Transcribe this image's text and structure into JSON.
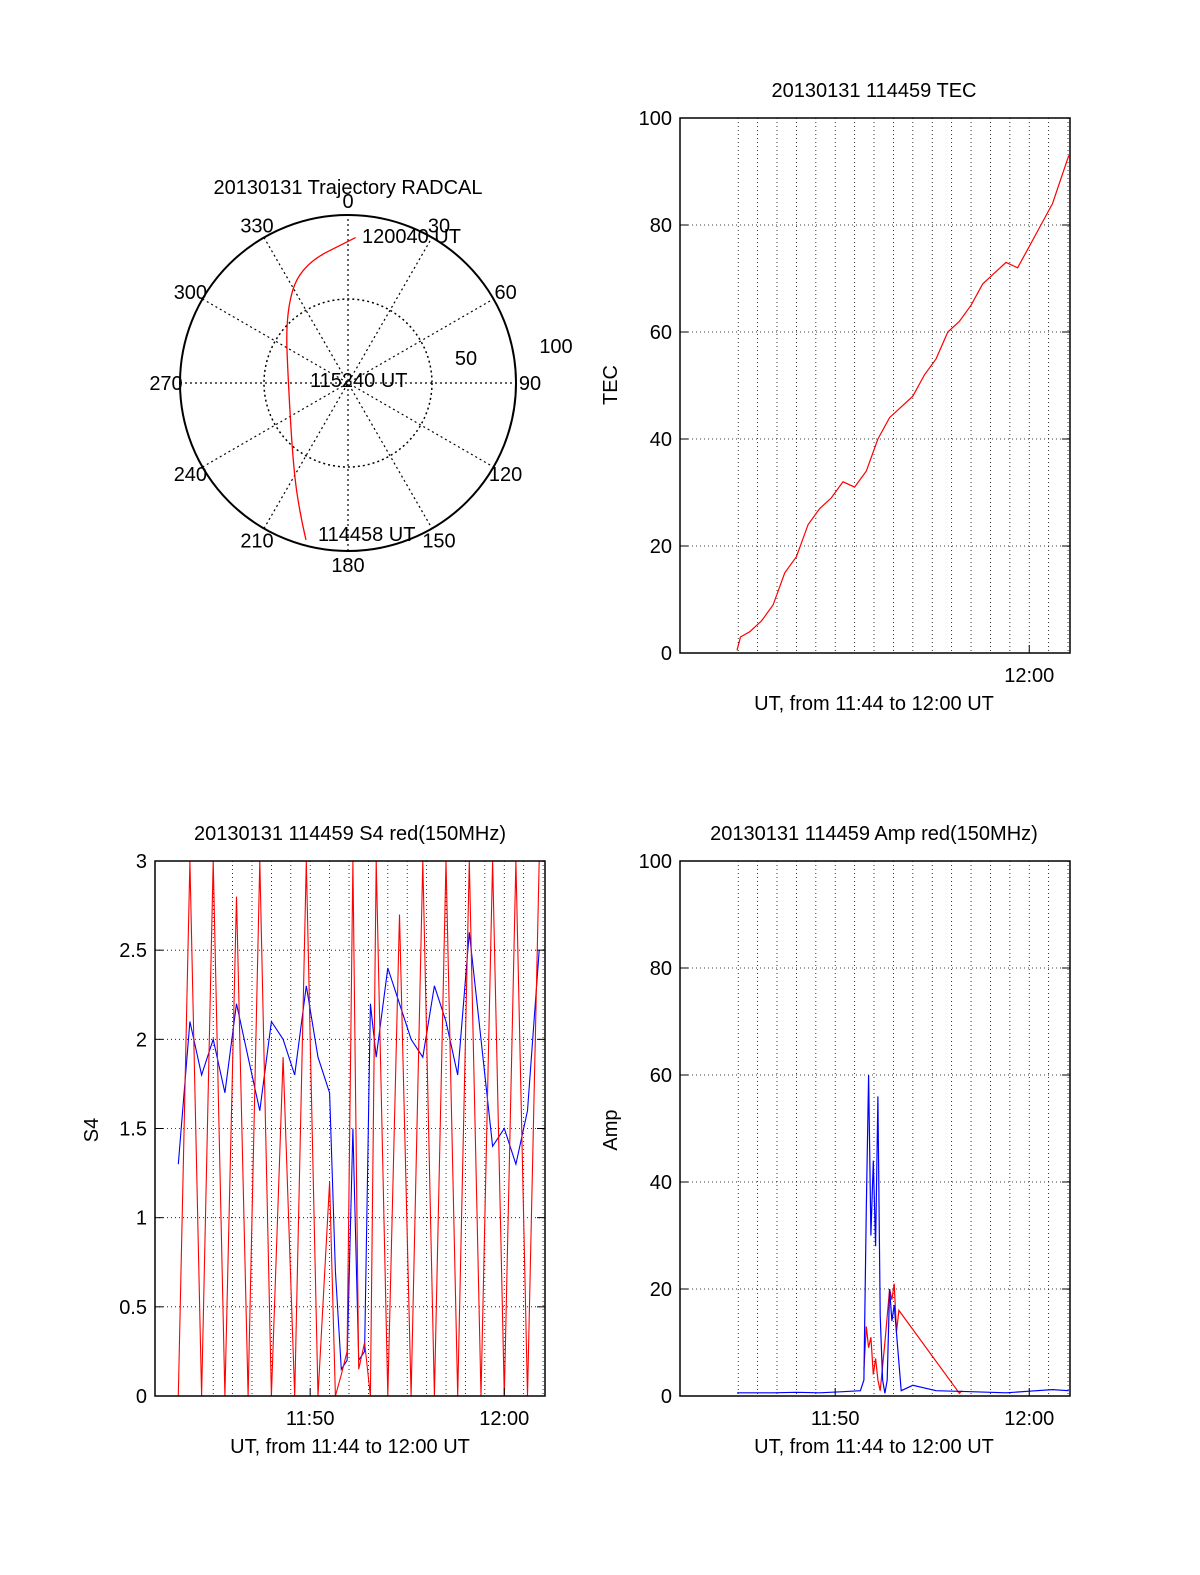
{
  "chart_data": [
    {
      "type": "polar",
      "title": "20130131 Trajectory RADCAL",
      "azimuth_labels": [
        "0",
        "30",
        "60",
        "90",
        "120",
        "150",
        "180",
        "210",
        "240",
        "270",
        "300",
        "330"
      ],
      "radius_labels": [
        "50",
        "100"
      ],
      "grid": "dotted",
      "series": [
        {
          "color": "#ff0000",
          "points": [
            {
              "az": 195,
              "el": 3
            },
            {
              "az": 200,
              "el": 15
            },
            {
              "az": 212,
              "el": 35
            },
            {
              "az": 265,
              "el": 58
            },
            {
              "az": 318,
              "el": 40
            },
            {
              "az": 338,
              "el": 22
            },
            {
              "az": 3,
              "el": 12
            }
          ]
        }
      ],
      "annotations": [
        "120040 UT",
        "115240 UT",
        "114458 UT"
      ]
    },
    {
      "type": "line",
      "title": "20130131 114459 TEC",
      "xlabel": "UT, from 11:44 to 12:00 UT",
      "ylabel": "TEC",
      "xlim": [
        11.7,
        12.035
      ],
      "ylim": [
        0,
        100
      ],
      "yticks": [
        "0",
        "20",
        "40",
        "60",
        "80",
        "100"
      ],
      "xticks": [
        {
          "x": 12.0,
          "label": "12:00"
        }
      ],
      "grid": true,
      "series": [
        {
          "color": "#ff0000",
          "x": [
            11.749,
            11.752,
            11.76,
            11.77,
            11.78,
            11.79,
            11.8,
            11.81,
            11.82,
            11.83,
            11.84,
            11.85,
            11.86,
            11.87,
            11.88,
            11.89,
            11.9,
            11.91,
            11.92,
            11.93,
            11.94,
            11.95,
            11.96,
            11.97,
            11.98,
            11.99,
            12.0,
            12.01,
            12.02,
            12.034
          ],
          "y": [
            0.5,
            3,
            4,
            6,
            9,
            15,
            18,
            24,
            27,
            29,
            32,
            31,
            34,
            40,
            44,
            46,
            48,
            52,
            55,
            60,
            62,
            65,
            69,
            71,
            73,
            72,
            76,
            80,
            84,
            93
          ]
        }
      ]
    },
    {
      "type": "line",
      "title": "20130131 114459 S4 red(150MHz)",
      "xlabel": "UT, from 11:44 to 12:00 UT",
      "ylabel": "S4",
      "xlim": [
        11.7,
        12.035
      ],
      "ylim": [
        0,
        3
      ],
      "yticks": [
        "0",
        "0.5",
        "1",
        "1.5",
        "2",
        "2.5",
        "3"
      ],
      "xticks": [
        {
          "x": 11.8333,
          "label": "11:50"
        },
        {
          "x": 12.0,
          "label": "12:00"
        }
      ],
      "grid": true,
      "series": [
        {
          "color": "#0000ff",
          "x": [
            11.72,
            11.73,
            11.74,
            11.75,
            11.76,
            11.77,
            11.78,
            11.79,
            11.8,
            11.81,
            11.82,
            11.83,
            11.84,
            11.85,
            11.855,
            11.86,
            11.865,
            11.87,
            11.875,
            11.88,
            11.885,
            11.89,
            11.9,
            11.91,
            11.92,
            11.93,
            11.94,
            11.95,
            11.96,
            11.97,
            11.98,
            11.99,
            12.0,
            12.01,
            12.02,
            12.03
          ],
          "y": [
            1.3,
            2.1,
            1.8,
            2.0,
            1.7,
            2.2,
            1.9,
            1.6,
            2.1,
            2.0,
            1.8,
            2.3,
            1.9,
            1.7,
            0.7,
            0.15,
            0.2,
            1.5,
            0.2,
            0.25,
            2.2,
            1.9,
            2.4,
            2.2,
            2.0,
            1.9,
            2.3,
            2.1,
            1.8,
            2.6,
            2.0,
            1.4,
            1.5,
            1.3,
            1.6,
            2.5
          ]
        },
        {
          "color": "#ff0000",
          "x": [
            11.72,
            11.73,
            11.74,
            11.75,
            11.76,
            11.77,
            11.78,
            11.79,
            11.8,
            11.81,
            11.82,
            11.83,
            11.84,
            11.85,
            11.855,
            11.86,
            11.865,
            11.87,
            11.875,
            11.88,
            11.885,
            11.89,
            11.9,
            11.91,
            11.92,
            11.93,
            11.94,
            11.95,
            11.96,
            11.97,
            11.98,
            11.99,
            12.0,
            12.01,
            12.02,
            12.03
          ],
          "y": [
            0,
            3,
            0,
            3,
            0,
            2.8,
            0,
            3,
            0,
            1.9,
            0,
            3,
            0,
            1.2,
            0,
            0.12,
            0.25,
            3,
            0.15,
            0.3,
            0,
            3,
            0,
            2.7,
            0,
            3,
            0,
            3,
            0,
            3,
            0,
            3,
            0,
            3,
            0,
            3
          ]
        }
      ]
    },
    {
      "type": "line",
      "title": "20130131 114459 Amp red(150MHz)",
      "xlabel": "UT, from 11:44 to 12:00 UT",
      "ylabel": "Amp",
      "xlim": [
        11.7,
        12.035
      ],
      "ylim": [
        0,
        100
      ],
      "yticks": [
        "0",
        "20",
        "40",
        "60",
        "80",
        "100"
      ],
      "xticks": [
        {
          "x": 11.8333,
          "label": "11:50"
        },
        {
          "x": 12.0,
          "label": "12:00"
        }
      ],
      "grid": true,
      "series": [
        {
          "color": "#0000ff",
          "x": [
            11.749,
            11.78,
            11.8,
            11.82,
            11.84,
            11.855,
            11.858,
            11.86,
            11.862,
            11.864,
            11.866,
            11.868,
            11.87,
            11.872,
            11.874,
            11.876,
            11.878,
            11.88,
            11.882,
            11.884,
            11.89,
            11.9,
            11.92,
            11.95,
            11.98,
            12.0,
            12.02,
            12.034
          ],
          "y": [
            0.6,
            0.6,
            0.7,
            0.6,
            0.8,
            1,
            3,
            35,
            60,
            30,
            44,
            28,
            56,
            15,
            3,
            0.5,
            3,
            20,
            14,
            17,
            1,
            2,
            1,
            0.8,
            0.6,
            0.9,
            1.2,
            1
          ]
        },
        {
          "color": "#ff0000",
          "x": [
            11.858,
            11.86,
            11.862,
            11.864,
            11.866,
            11.868,
            11.87,
            11.872,
            11.876,
            11.88,
            11.882,
            11.884,
            11.886,
            11.888,
            11.94,
            11.942
          ],
          "y": [
            5,
            13,
            9,
            11,
            4,
            7,
            3,
            1,
            10,
            20,
            18,
            21,
            12,
            16,
            0.5,
            1
          ]
        }
      ]
    }
  ]
}
